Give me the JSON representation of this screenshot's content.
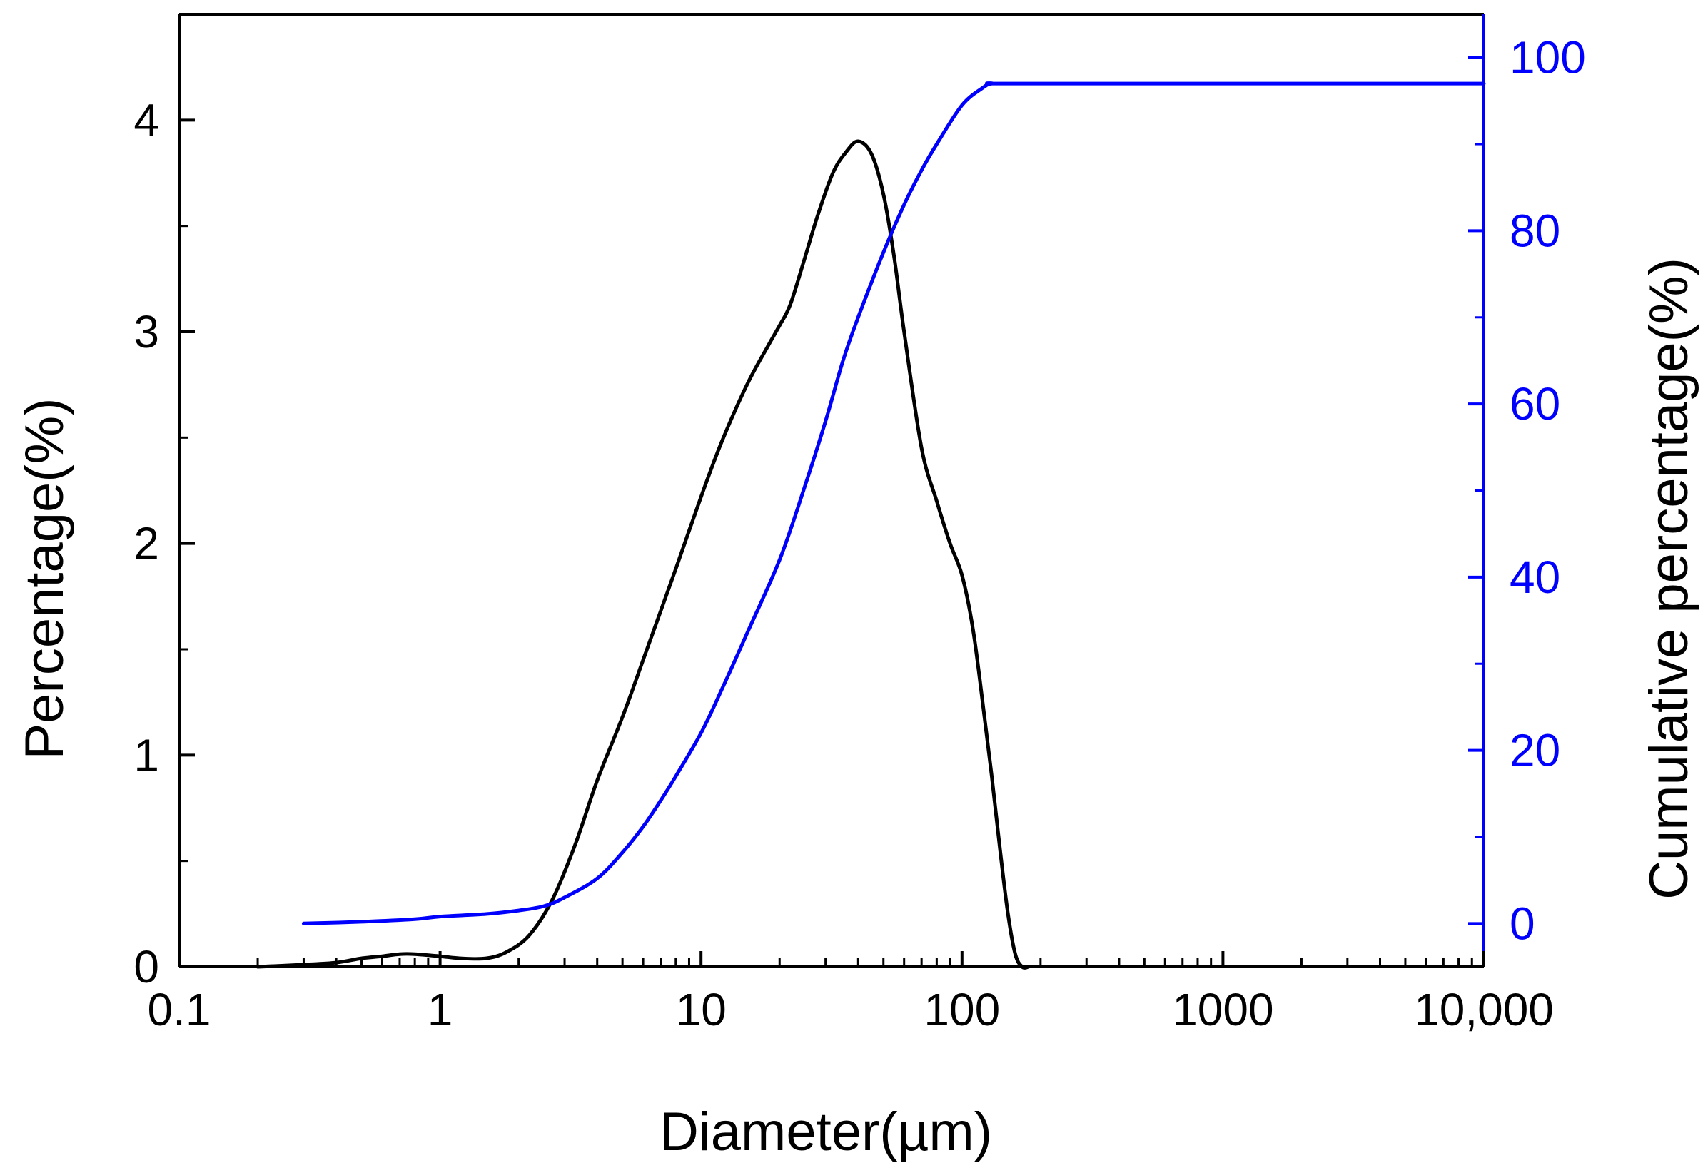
{
  "chart_data": {
    "type": "line",
    "xlabel": "Diameter(µm)",
    "ylabel": "Percentage(%)",
    "ylabel_right": "Cumulative percentage(%)",
    "x_scale": "log",
    "xlim": [
      0.1,
      10000
    ],
    "ylim": [
      0,
      4.5
    ],
    "ylim_right": [
      -5,
      105
    ],
    "x_ticks": [
      0.1,
      1,
      10,
      100,
      1000,
      10000
    ],
    "x_tick_labels": [
      "0.1",
      "1",
      "10",
      "100",
      "1000",
      "10,000"
    ],
    "y_ticks": [
      0,
      1,
      2,
      3,
      4
    ],
    "y_tick_labels": [
      "0",
      "1",
      "2",
      "3",
      "4"
    ],
    "y_right_ticks": [
      0,
      20,
      40,
      60,
      80,
      100
    ],
    "y_right_tick_labels": [
      "0",
      "20",
      "40",
      "60",
      "80",
      "100"
    ],
    "grid": false,
    "colors": {
      "axis": "#000000",
      "right_axis": "#0000ff"
    },
    "series": [
      {
        "axis": "left",
        "color": "#000000",
        "x": [
          0.2,
          0.3,
          0.4,
          0.5,
          0.6,
          0.7,
          0.8,
          1.0,
          1.2,
          1.5,
          1.8,
          2.2,
          2.7,
          3.3,
          4.0,
          5.0,
          6.0,
          7.0,
          8.0,
          10,
          12,
          15,
          18,
          20,
          22,
          25,
          28,
          32,
          36,
          40,
          45,
          50,
          55,
          60,
          70,
          80,
          90,
          100,
          110,
          120,
          130,
          140,
          150,
          160,
          170,
          180
        ],
        "y": [
          0.0,
          0.01,
          0.02,
          0.04,
          0.05,
          0.06,
          0.06,
          0.05,
          0.04,
          0.04,
          0.07,
          0.15,
          0.32,
          0.58,
          0.88,
          1.18,
          1.45,
          1.68,
          1.88,
          2.22,
          2.48,
          2.75,
          2.93,
          3.03,
          3.13,
          3.35,
          3.55,
          3.75,
          3.85,
          3.9,
          3.84,
          3.65,
          3.35,
          3.0,
          2.45,
          2.2,
          2.0,
          1.85,
          1.6,
          1.25,
          0.9,
          0.55,
          0.25,
          0.06,
          0.0,
          0.0
        ]
      },
      {
        "axis": "right",
        "color": "#0000ff",
        "x": [
          0.3,
          0.5,
          0.8,
          1.0,
          1.5,
          2.0,
          2.5,
          3.0,
          4.0,
          5.0,
          6.0,
          7.0,
          8.0,
          10,
          12,
          15,
          20,
          25,
          30,
          35,
          40,
          50,
          60,
          70,
          80,
          100,
          120,
          130,
          150,
          1000,
          10000
        ],
        "y": [
          0.0,
          0.2,
          0.5,
          0.8,
          1.1,
          1.5,
          2.0,
          3.0,
          5.2,
          8.2,
          11.2,
          14.2,
          17.0,
          22.0,
          27.0,
          33.5,
          42.0,
          50.5,
          58.0,
          65.0,
          70.0,
          77.5,
          83.0,
          87.0,
          90.0,
          94.5,
          96.5,
          97.0,
          97.0,
          97.0,
          97.0
        ]
      }
    ]
  }
}
